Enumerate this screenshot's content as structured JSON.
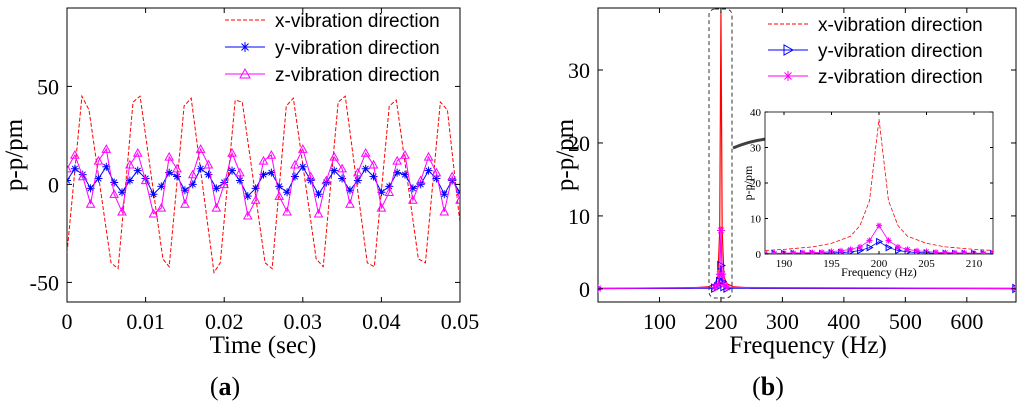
{
  "figure": {
    "panels": [
      {
        "label_open": "(",
        "label_letter": "a",
        "label_close": ")"
      },
      {
        "label_open": "(",
        "label_letter": "b",
        "label_close": ")"
      }
    ]
  },
  "colors": {
    "x": "#ff0000",
    "y": "#0000ff",
    "z": "#ff00ff",
    "axis": "#000000",
    "arrow": "#404040"
  },
  "chart_data": [
    {
      "type": "line",
      "title": "",
      "xlabel": "Time (sec)",
      "ylabel": "p-p/pm",
      "xlim": [
        0,
        0.05
      ],
      "ylim": [
        -60,
        90
      ],
      "xticks": [
        0,
        0.01,
        0.02,
        0.03,
        0.04,
        0.05
      ],
      "xtick_labels": [
        "0",
        "0.01",
        "0.02",
        "0.03",
        "0.04",
        "0.05"
      ],
      "yticks": [
        -50,
        0,
        50
      ],
      "ytick_labels": [
        "-50",
        "0",
        "50"
      ],
      "legend_position": "top-right",
      "series": [
        {
          "name": "x-vibration direction",
          "color": "#ff0000",
          "marker": "none",
          "x": [
            0.0,
            0.0019,
            0.0028,
            0.0056,
            0.0065,
            0.0084,
            0.0093,
            0.0122,
            0.013,
            0.0149,
            0.0158,
            0.0187,
            0.0195,
            0.0214,
            0.0223,
            0.0252,
            0.0261,
            0.0279,
            0.0288,
            0.0317,
            0.0326,
            0.0345,
            0.0354,
            0.0382,
            0.0391,
            0.041,
            0.0419,
            0.0447,
            0.0456,
            0.0475,
            0.0484,
            0.05
          ],
          "y": [
            -35,
            45,
            38,
            -40,
            -43,
            42,
            45,
            -38,
            -42,
            40,
            44,
            -45,
            -40,
            43,
            42,
            -40,
            -43,
            40,
            44,
            -38,
            -42,
            42,
            45,
            -40,
            -42,
            40,
            43,
            -38,
            -40,
            42,
            38,
            -20
          ]
        },
        {
          "name": "y-vibration direction",
          "color": "#0000ff",
          "marker": "asterisk",
          "x": [
            0.0,
            0.001,
            0.002,
            0.003,
            0.004,
            0.005,
            0.006,
            0.007,
            0.008,
            0.009,
            0.01,
            0.011,
            0.012,
            0.013,
            0.014,
            0.015,
            0.016,
            0.017,
            0.018,
            0.019,
            0.02,
            0.021,
            0.022,
            0.023,
            0.024,
            0.025,
            0.026,
            0.027,
            0.028,
            0.029,
            0.03,
            0.031,
            0.032,
            0.033,
            0.034,
            0.035,
            0.036,
            0.037,
            0.038,
            0.039,
            0.04,
            0.041,
            0.042,
            0.043,
            0.044,
            0.045,
            0.046,
            0.047,
            0.048,
            0.049,
            0.05
          ],
          "y": [
            2,
            8,
            5,
            -2,
            3,
            9,
            1,
            -4,
            2,
            7,
            3,
            -5,
            -1,
            6,
            4,
            -3,
            0,
            8,
            5,
            -2,
            1,
            7,
            2,
            -6,
            -2,
            5,
            6,
            -1,
            -4,
            4,
            9,
            2,
            -5,
            1,
            7,
            3,
            -3,
            2,
            8,
            4,
            -4,
            -1,
            6,
            5,
            -2,
            0,
            7,
            3,
            -5,
            2,
            -4
          ]
        },
        {
          "name": "z-vibration direction",
          "color": "#ff00ff",
          "marker": "triangle",
          "x": [
            0.0,
            0.001,
            0.002,
            0.003,
            0.004,
            0.005,
            0.006,
            0.007,
            0.008,
            0.009,
            0.01,
            0.011,
            0.012,
            0.013,
            0.014,
            0.015,
            0.016,
            0.017,
            0.018,
            0.019,
            0.02,
            0.021,
            0.022,
            0.023,
            0.024,
            0.025,
            0.026,
            0.027,
            0.028,
            0.029,
            0.03,
            0.031,
            0.032,
            0.033,
            0.034,
            0.035,
            0.036,
            0.037,
            0.038,
            0.039,
            0.04,
            0.041,
            0.042,
            0.043,
            0.044,
            0.045,
            0.046,
            0.047,
            0.048,
            0.049,
            0.05
          ],
          "y": [
            8,
            15,
            4,
            -10,
            12,
            18,
            -5,
            -14,
            10,
            16,
            2,
            -15,
            -12,
            14,
            8,
            -10,
            5,
            18,
            10,
            -12,
            0,
            16,
            6,
            -16,
            -8,
            12,
            15,
            -6,
            -14,
            10,
            18,
            4,
            -15,
            2,
            14,
            8,
            -10,
            6,
            16,
            10,
            -12,
            -4,
            12,
            15,
            -8,
            2,
            14,
            6,
            -14,
            4,
            -8
          ]
        }
      ]
    },
    {
      "type": "line",
      "title": "",
      "xlabel": "Frequency (Hz)",
      "ylabel": "p-p/pm",
      "xlim": [
        0,
        680
      ],
      "ylim": [
        -1.8,
        38.5
      ],
      "xticks": [
        100,
        200,
        300,
        400,
        500,
        600
      ],
      "xtick_labels": [
        "100",
        "200",
        "300",
        "400",
        "500",
        "600"
      ],
      "yticks": [
        0,
        10,
        20,
        30
      ],
      "ytick_labels": [
        "0",
        "10",
        "20",
        "30"
      ],
      "legend_position": "top-right",
      "series": [
        {
          "name": "x-vibration direction",
          "color": "#ff0000",
          "marker": "none",
          "x": [
            0,
            150,
            180,
            190,
            195,
            198,
            200,
            202,
            205,
            210,
            220,
            250,
            680
          ],
          "y": [
            0.05,
            0.1,
            0.3,
            0.7,
            1.6,
            8,
            38,
            8,
            1.6,
            0.7,
            0.3,
            0.1,
            0.05
          ]
        },
        {
          "name": "y-vibration direction",
          "color": "#0000ff",
          "marker": "triangle-right",
          "x": [
            0,
            190,
            195,
            198,
            200,
            202,
            205,
            210,
            680
          ],
          "y": [
            0.05,
            0.1,
            0.3,
            1.0,
            3.2,
            1.0,
            0.3,
            0.1,
            0.05
          ]
        },
        {
          "name": "z-vibration direction",
          "color": "#ff00ff",
          "marker": "asterisk",
          "x": [
            0,
            190,
            195,
            198,
            200,
            202,
            205,
            210,
            680
          ],
          "y": [
            0.05,
            0.2,
            0.6,
            2.0,
            8.0,
            2.0,
            0.6,
            0.2,
            0.05
          ]
        }
      ],
      "inset": {
        "xlabel": "Frequency (Hz)",
        "ylabel": "p-p/pm",
        "xlim": [
          188,
          212
        ],
        "ylim": [
          0,
          40
        ],
        "xticks": [
          190,
          195,
          200,
          205,
          210
        ],
        "xtick_labels": [
          "190",
          "195",
          "200",
          "205",
          "210"
        ],
        "yticks": [
          0,
          10,
          20,
          30,
          40
        ],
        "ytick_labels": [
          "0",
          "10",
          "20",
          "30",
          "40"
        ],
        "series": [
          {
            "name": "x-vibration direction",
            "color": "#ff0000",
            "marker": "none",
            "x": [
              188,
              190,
              193,
              195,
              197,
              198,
              199,
              200,
              201,
              202,
              203,
              205,
              207,
              210,
              212
            ],
            "y": [
              1.0,
              1.3,
              2.0,
              3.0,
              5.0,
              8.0,
              15,
              38,
              15,
              8.0,
              5.0,
              3.0,
              2.0,
              1.3,
              1.0
            ]
          },
          {
            "name": "y-vibration direction",
            "color": "#0000ff",
            "marker": "triangle-right",
            "x": [
              188,
              189,
              190,
              191,
              192,
              193,
              194,
              195,
              196,
              197,
              198,
              199,
              200,
              201,
              202,
              203,
              204,
              205,
              206,
              207,
              208,
              209,
              210,
              211,
              212
            ],
            "y": [
              0.1,
              0.1,
              0.1,
              0.15,
              0.15,
              0.2,
              0.2,
              0.3,
              0.4,
              0.6,
              1.0,
              1.8,
              3.5,
              1.8,
              1.0,
              0.6,
              0.4,
              0.3,
              0.2,
              0.2,
              0.15,
              0.15,
              0.1,
              0.1,
              0.1
            ]
          },
          {
            "name": "z-vibration direction",
            "color": "#ff00ff",
            "marker": "asterisk",
            "x": [
              188,
              189,
              190,
              191,
              192,
              193,
              194,
              195,
              196,
              197,
              198,
              199,
              200,
              201,
              202,
              203,
              204,
              205,
              206,
              207,
              208,
              209,
              210,
              211,
              212
            ],
            "y": [
              0.2,
              0.2,
              0.25,
              0.3,
              0.35,
              0.4,
              0.5,
              0.7,
              0.9,
              1.3,
              2.0,
              3.8,
              8.0,
              3.8,
              2.0,
              1.3,
              0.9,
              0.7,
              0.5,
              0.4,
              0.35,
              0.3,
              0.25,
              0.2,
              0.2
            ]
          }
        ]
      }
    }
  ]
}
